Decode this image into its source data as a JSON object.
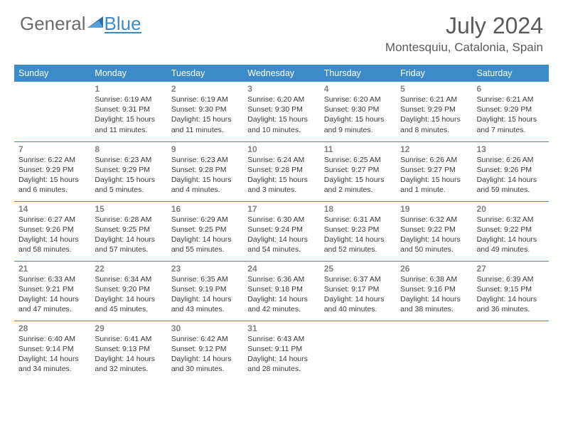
{
  "brand": {
    "text1": "General",
    "text2": "Blue"
  },
  "title": "July 2024",
  "location": "Montesquiu, Catalonia, Spain",
  "colors": {
    "header_bg": "#3b8bc9",
    "header_fg": "#ffffff",
    "daynum": "#808080",
    "bodytext": "#3a3a3a",
    "title": "#5a5a5a",
    "logo_gray": "#6b6b6b",
    "logo_blue": "#3b8bc9",
    "rule": "#3b8bc9"
  },
  "weekdays": [
    "Sunday",
    "Monday",
    "Tuesday",
    "Wednesday",
    "Thursday",
    "Friday",
    "Saturday"
  ],
  "weeks": [
    [
      null,
      {
        "n": "1",
        "rise": "6:19 AM",
        "set": "9:31 PM",
        "d1": "15 hours",
        "d2": "and 11 minutes."
      },
      {
        "n": "2",
        "rise": "6:19 AM",
        "set": "9:30 PM",
        "d1": "15 hours",
        "d2": "and 11 minutes."
      },
      {
        "n": "3",
        "rise": "6:20 AM",
        "set": "9:30 PM",
        "d1": "15 hours",
        "d2": "and 10 minutes."
      },
      {
        "n": "4",
        "rise": "6:20 AM",
        "set": "9:30 PM",
        "d1": "15 hours",
        "d2": "and 9 minutes."
      },
      {
        "n": "5",
        "rise": "6:21 AM",
        "set": "9:29 PM",
        "d1": "15 hours",
        "d2": "and 8 minutes."
      },
      {
        "n": "6",
        "rise": "6:21 AM",
        "set": "9:29 PM",
        "d1": "15 hours",
        "d2": "and 7 minutes."
      }
    ],
    [
      {
        "n": "7",
        "rise": "6:22 AM",
        "set": "9:29 PM",
        "d1": "15 hours",
        "d2": "and 6 minutes."
      },
      {
        "n": "8",
        "rise": "6:23 AM",
        "set": "9:29 PM",
        "d1": "15 hours",
        "d2": "and 5 minutes."
      },
      {
        "n": "9",
        "rise": "6:23 AM",
        "set": "9:28 PM",
        "d1": "15 hours",
        "d2": "and 4 minutes."
      },
      {
        "n": "10",
        "rise": "6:24 AM",
        "set": "9:28 PM",
        "d1": "15 hours",
        "d2": "and 3 minutes."
      },
      {
        "n": "11",
        "rise": "6:25 AM",
        "set": "9:27 PM",
        "d1": "15 hours",
        "d2": "and 2 minutes."
      },
      {
        "n": "12",
        "rise": "6:26 AM",
        "set": "9:27 PM",
        "d1": "15 hours",
        "d2": "and 1 minute."
      },
      {
        "n": "13",
        "rise": "6:26 AM",
        "set": "9:26 PM",
        "d1": "14 hours",
        "d2": "and 59 minutes."
      }
    ],
    [
      {
        "n": "14",
        "rise": "6:27 AM",
        "set": "9:26 PM",
        "d1": "14 hours",
        "d2": "and 58 minutes."
      },
      {
        "n": "15",
        "rise": "6:28 AM",
        "set": "9:25 PM",
        "d1": "14 hours",
        "d2": "and 57 minutes."
      },
      {
        "n": "16",
        "rise": "6:29 AM",
        "set": "9:25 PM",
        "d1": "14 hours",
        "d2": "and 55 minutes."
      },
      {
        "n": "17",
        "rise": "6:30 AM",
        "set": "9:24 PM",
        "d1": "14 hours",
        "d2": "and 54 minutes."
      },
      {
        "n": "18",
        "rise": "6:31 AM",
        "set": "9:23 PM",
        "d1": "14 hours",
        "d2": "and 52 minutes."
      },
      {
        "n": "19",
        "rise": "6:32 AM",
        "set": "9:22 PM",
        "d1": "14 hours",
        "d2": "and 50 minutes."
      },
      {
        "n": "20",
        "rise": "6:32 AM",
        "set": "9:22 PM",
        "d1": "14 hours",
        "d2": "and 49 minutes."
      }
    ],
    [
      {
        "n": "21",
        "rise": "6:33 AM",
        "set": "9:21 PM",
        "d1": "14 hours",
        "d2": "and 47 minutes."
      },
      {
        "n": "22",
        "rise": "6:34 AM",
        "set": "9:20 PM",
        "d1": "14 hours",
        "d2": "and 45 minutes."
      },
      {
        "n": "23",
        "rise": "6:35 AM",
        "set": "9:19 PM",
        "d1": "14 hours",
        "d2": "and 43 minutes."
      },
      {
        "n": "24",
        "rise": "6:36 AM",
        "set": "9:18 PM",
        "d1": "14 hours",
        "d2": "and 42 minutes."
      },
      {
        "n": "25",
        "rise": "6:37 AM",
        "set": "9:17 PM",
        "d1": "14 hours",
        "d2": "and 40 minutes."
      },
      {
        "n": "26",
        "rise": "6:38 AM",
        "set": "9:16 PM",
        "d1": "14 hours",
        "d2": "and 38 minutes."
      },
      {
        "n": "27",
        "rise": "6:39 AM",
        "set": "9:15 PM",
        "d1": "14 hours",
        "d2": "and 36 minutes."
      }
    ],
    [
      {
        "n": "28",
        "rise": "6:40 AM",
        "set": "9:14 PM",
        "d1": "14 hours",
        "d2": "and 34 minutes."
      },
      {
        "n": "29",
        "rise": "6:41 AM",
        "set": "9:13 PM",
        "d1": "14 hours",
        "d2": "and 32 minutes."
      },
      {
        "n": "30",
        "rise": "6:42 AM",
        "set": "9:12 PM",
        "d1": "14 hours",
        "d2": "and 30 minutes."
      },
      {
        "n": "31",
        "rise": "6:43 AM",
        "set": "9:11 PM",
        "d1": "14 hours",
        "d2": "and 28 minutes."
      },
      null,
      null,
      null
    ]
  ],
  "labels": {
    "sunrise": "Sunrise:",
    "sunset": "Sunset:",
    "daylight": "Daylight:"
  }
}
